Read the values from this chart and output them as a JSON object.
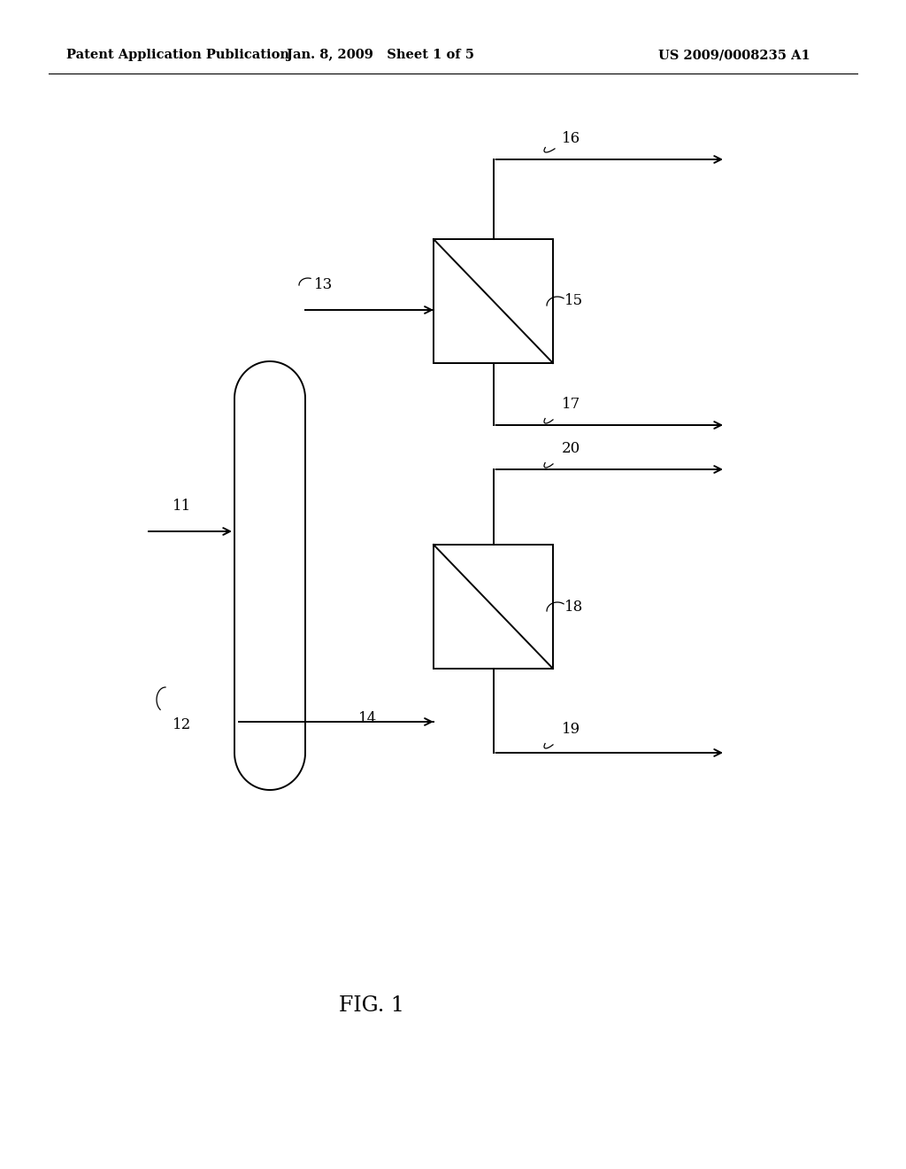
{
  "background_color": "#ffffff",
  "header_left": "Patent Application Publication",
  "header_center": "Jan. 8, 2009   Sheet 1 of 5",
  "header_right": "US 2009/0008235 A1",
  "header_fontsize": 10.5,
  "fig_label": "FIG. 1",
  "fig_label_fontsize": 17,
  "line_color": "#000000",
  "line_width": 1.4
}
